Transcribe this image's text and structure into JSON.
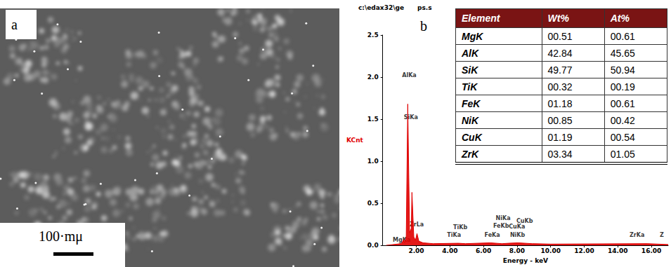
{
  "panel_a": {
    "label": "a",
    "scale_bar": "100·mμ"
  },
  "chart_data": {
    "type": "line",
    "label": "b",
    "header": [
      "c:\\edax32\\ge",
      "ps.s"
    ],
    "x_label": "Energy - keV",
    "y_label": "KCnt",
    "color": "#e00000",
    "grid": false,
    "x": [
      0.2,
      1.1,
      1.2,
      1.25,
      1.3,
      1.4,
      1.49,
      1.6,
      1.7,
      1.74,
      1.85,
      1.95,
      2.04,
      2.15,
      2.4,
      3.0,
      4.5,
      4.93,
      6.4,
      7.1,
      7.5,
      8.05,
      8.9,
      10.0,
      15.75,
      17.0
    ],
    "values": [
      0,
      0.02,
      0.05,
      0.07,
      0.03,
      0.1,
      1.68,
      0.15,
      0.2,
      0.63,
      0.1,
      0.06,
      0.14,
      0.05,
      0.03,
      0.02,
      0.025,
      0.02,
      0.03,
      0.02,
      0.025,
      0.03,
      0.02,
      0.015,
      0.02,
      0.01
    ],
    "xlim": [
      0,
      17
    ],
    "xticks": [
      {
        "value": 2,
        "label": "2.00"
      },
      {
        "value": 4,
        "label": "4.00"
      },
      {
        "value": 6,
        "label": "6.00"
      },
      {
        "value": 8,
        "label": "8.00"
      },
      {
        "value": 10,
        "label": "10.00"
      },
      {
        "value": 12,
        "label": "12.00"
      },
      {
        "value": 14,
        "label": "14.00"
      },
      {
        "value": 16,
        "label": "16.00"
      }
    ],
    "ylim": [
      0,
      2.5
    ],
    "yticks": [
      {
        "value": 0,
        "label": "0.0"
      },
      {
        "value": 0.5,
        "label": "0.5"
      },
      {
        "value": 1,
        "label": "1.0"
      },
      {
        "value": 1.5,
        "label": "1.5"
      },
      {
        "value": 2,
        "label": "2.0"
      },
      {
        "value": 2.5,
        "label": "2.5"
      }
    ],
    "annotations": [
      {
        "text": "AlKa",
        "x": 1.15,
        "y": 2.02
      },
      {
        "text": "SiKa",
        "x": 1.26,
        "y": 1.52
      },
      {
        "text": "MgKa",
        "x": 0.6,
        "y": 0.06
      },
      {
        "text": "ZrLa",
        "x": 1.6,
        "y": 0.25
      },
      {
        "text": "TiKb",
        "x": 4.2,
        "y": 0.21
      },
      {
        "text": "TiKa",
        "x": 3.83,
        "y": 0.12
      },
      {
        "text": "FeKa",
        "x": 6.06,
        "y": 0.12
      },
      {
        "text": "FeKb",
        "x": 6.58,
        "y": 0.23
      },
      {
        "text": "NiKa",
        "x": 6.73,
        "y": 0.32
      },
      {
        "text": "CuKb",
        "x": 7.96,
        "y": 0.29
      },
      {
        "text": "CuKa",
        "x": 7.51,
        "y": 0.22
      },
      {
        "text": "NiKb",
        "x": 7.58,
        "y": 0.12
      },
      {
        "text": "ZrKa",
        "x": 14.7,
        "y": 0.12
      },
      {
        "text": "Z",
        "x": 16.5,
        "y": 0.12
      }
    ]
  },
  "table": {
    "header": [
      "Element",
      "Wt%",
      "At%"
    ],
    "rows": [
      [
        "MgK",
        "00.51",
        "00.61"
      ],
      [
        "AlK",
        "42.84",
        "45.65"
      ],
      [
        "SiK",
        "49.77",
        "50.94"
      ],
      [
        "TiK",
        "00.32",
        "00.19"
      ],
      [
        "FeK",
        "01.18",
        "00.61"
      ],
      [
        "NiK",
        "00.85",
        "00.42"
      ],
      [
        "CuK",
        "01.19",
        "00.54"
      ],
      [
        "ZrK",
        "03.34",
        "01.05"
      ]
    ]
  }
}
